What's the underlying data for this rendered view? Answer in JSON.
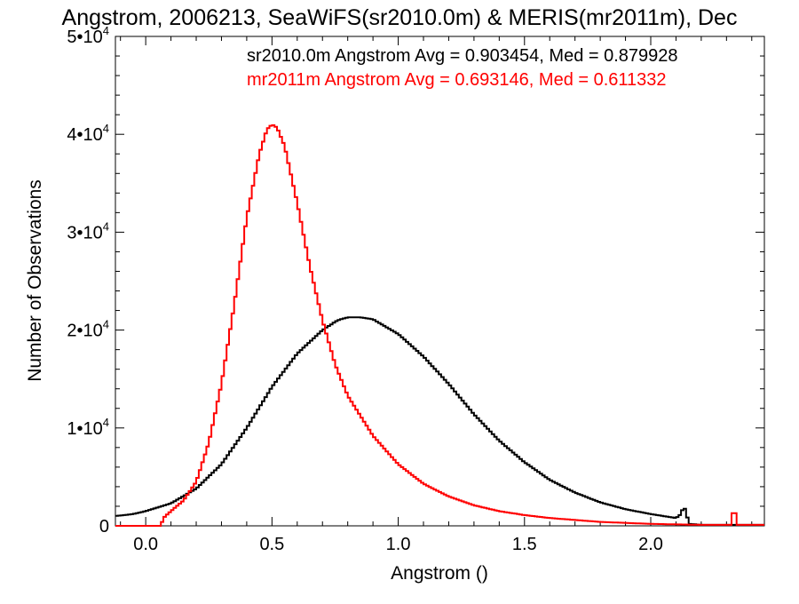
{
  "chart_data": {
    "type": "line",
    "title": "Angstrom, 2006213, SeaWiFS(sr2010.0m) & MERIS(mr2011m), Dec",
    "xlabel": "Angstrom ()",
    "ylabel": "Number of Observations",
    "xlim": [
      -0.12,
      2.45
    ],
    "ylim": [
      0,
      50000
    ],
    "grid": false,
    "x_ticks": [
      0.0,
      0.5,
      1.0,
      1.5,
      2.0
    ],
    "x_tick_labels": [
      "0.0",
      "0.5",
      "1.0",
      "1.5",
      "2.0"
    ],
    "y_ticks": [
      0,
      10000,
      20000,
      30000,
      40000,
      50000
    ],
    "y_tick_labels": [
      {
        "base": "0",
        "exp": ""
      },
      {
        "base": "1•10",
        "exp": "4"
      },
      {
        "base": "2•10",
        "exp": "4"
      },
      {
        "base": "3•10",
        "exp": "4"
      },
      {
        "base": "4•10",
        "exp": "4"
      },
      {
        "base": "5•10",
        "exp": "4"
      }
    ],
    "legend": [
      {
        "text": "sr2010.0m Angstrom Avg = 0.903454, Med = 0.879928",
        "color": "#000000"
      },
      {
        "text": "mr2011m Angstrom Avg = 0.693146, Med = 0.611332",
        "color": "#ff0000"
      }
    ],
    "series": [
      {
        "color": "#000000",
        "x": [
          -0.12,
          -0.05,
          0.0,
          0.1,
          0.2,
          0.3,
          0.4,
          0.5,
          0.6,
          0.7,
          0.76,
          0.8,
          0.85,
          0.9,
          1.0,
          1.1,
          1.2,
          1.3,
          1.4,
          1.5,
          1.6,
          1.7,
          1.8,
          1.9,
          2.0,
          2.05,
          2.1,
          2.12,
          2.13,
          2.14,
          2.15,
          2.2,
          2.3,
          2.45
        ],
        "y": [
          1000,
          1200,
          1500,
          2300,
          3800,
          6300,
          10000,
          14200,
          17600,
          20000,
          21000,
          21300,
          21300,
          21100,
          19600,
          17300,
          14500,
          11400,
          8700,
          6500,
          4700,
          3400,
          2400,
          1700,
          1200,
          1000,
          800,
          1200,
          2000,
          1500,
          200,
          100,
          100,
          100
        ]
      },
      {
        "color": "#ff0000",
        "x": [
          -0.12,
          0.06,
          0.07,
          0.1,
          0.15,
          0.2,
          0.25,
          0.3,
          0.35,
          0.4,
          0.45,
          0.48,
          0.5,
          0.52,
          0.55,
          0.6,
          0.65,
          0.7,
          0.75,
          0.8,
          0.9,
          1.0,
          1.1,
          1.2,
          1.3,
          1.4,
          1.5,
          1.6,
          1.7,
          1.8,
          1.9,
          2.0,
          2.1,
          2.2,
          2.3,
          2.32,
          2.33,
          2.34,
          2.45
        ],
        "y": [
          0,
          0,
          800,
          1500,
          2600,
          4500,
          8500,
          14500,
          22500,
          31500,
          38000,
          40500,
          41000,
          40700,
          38800,
          33000,
          26500,
          21000,
          16500,
          13300,
          9200,
          6300,
          4300,
          3000,
          2100,
          1500,
          1100,
          800,
          600,
          400,
          300,
          200,
          150,
          100,
          100,
          100,
          2500,
          100,
          100
        ]
      }
    ]
  }
}
